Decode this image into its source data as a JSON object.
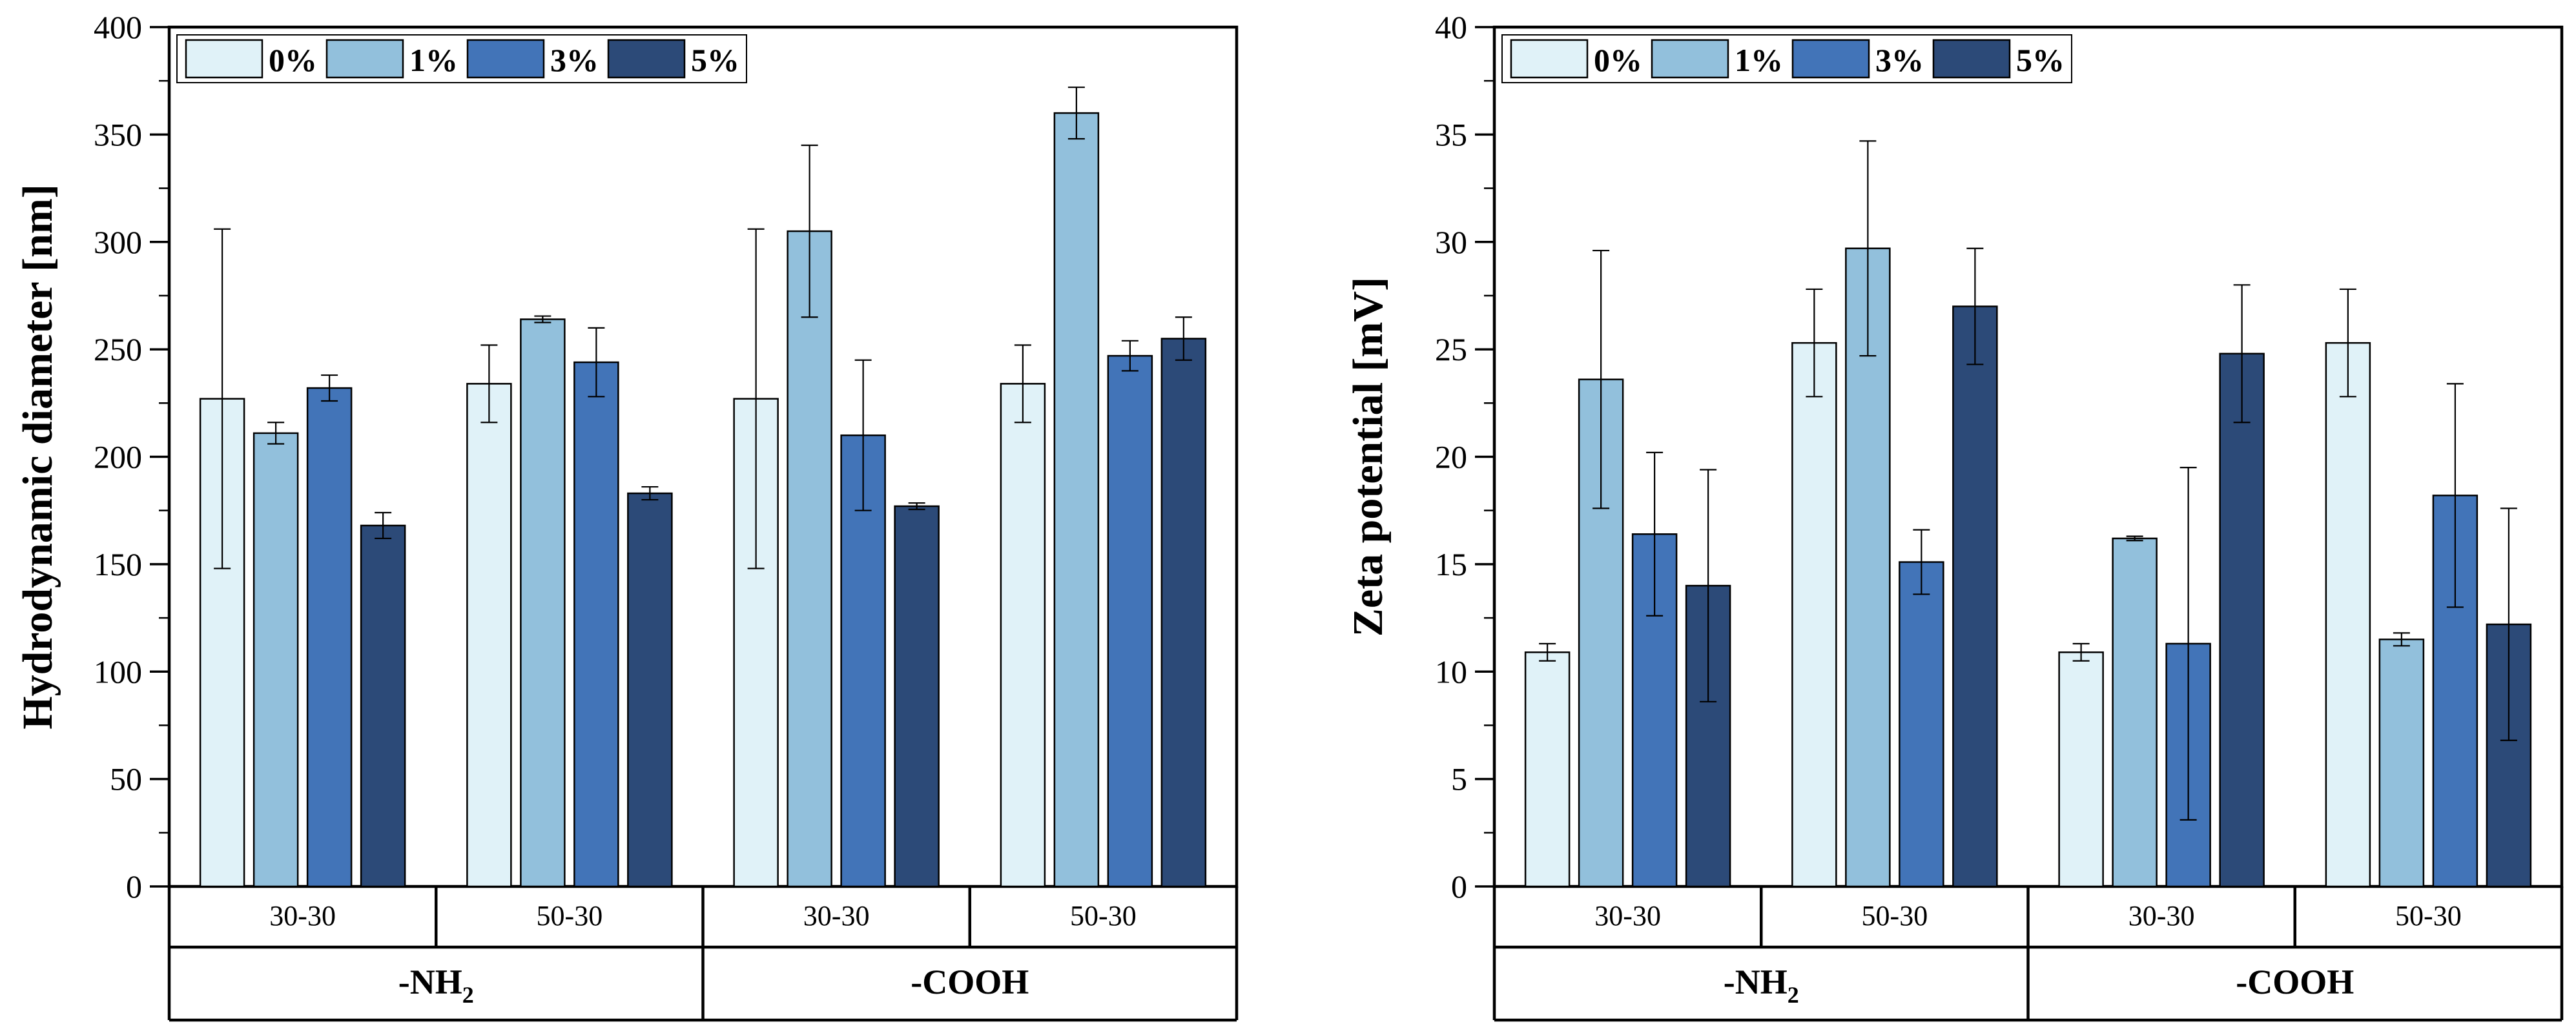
{
  "chart_data": [
    {
      "type": "bar",
      "ylabel": "Hydrodynamic diameter [nm]",
      "ylim": [
        0,
        400
      ],
      "yticks": [
        0,
        50,
        100,
        150,
        200,
        250,
        300,
        350,
        400
      ],
      "legend_position": "top-left",
      "groups": [
        {
          "label": "-NH",
          "sub": "2",
          "categories": [
            "30-30",
            "50-30"
          ]
        },
        {
          "label": "-COOH",
          "sub": "",
          "categories": [
            "30-30",
            "50-30"
          ]
        }
      ],
      "categories": [
        "30-30",
        "50-30",
        "30-30",
        "50-30"
      ],
      "series": [
        {
          "name": "0%",
          "color": "#e0f2f8",
          "values": [
            227,
            234,
            227,
            234
          ],
          "errors": [
            79,
            18,
            79,
            18
          ]
        },
        {
          "name": "1%",
          "color": "#92c0dc",
          "values": [
            211,
            264,
            305,
            360
          ],
          "errors": [
            5,
            1.5,
            40,
            12
          ]
        },
        {
          "name": "3%",
          "color": "#4274b8",
          "values": [
            232,
            244,
            210,
            247
          ],
          "errors": [
            6,
            16,
            35,
            7
          ]
        },
        {
          "name": "5%",
          "color": "#2c4a78",
          "values": [
            168,
            183,
            177,
            255
          ],
          "errors": [
            6,
            3,
            1.5,
            10
          ]
        }
      ]
    },
    {
      "type": "bar",
      "ylabel": "Zeta potential [mV]",
      "ylim": [
        0,
        40
      ],
      "yticks": [
        0,
        5,
        10,
        15,
        20,
        25,
        30,
        35,
        40
      ],
      "legend_position": "top-left",
      "groups": [
        {
          "label": "-NH",
          "sub": "2",
          "categories": [
            "30-30",
            "50-30"
          ]
        },
        {
          "label": "-COOH",
          "sub": "",
          "categories": [
            "30-30",
            "50-30"
          ]
        }
      ],
      "categories": [
        "30-30",
        "50-30",
        "30-30",
        "50-30"
      ],
      "series": [
        {
          "name": "0%",
          "color": "#e0f2f8",
          "values": [
            10.9,
            25.3,
            10.9,
            25.3
          ],
          "errors": [
            0.4,
            2.5,
            0.4,
            2.5
          ]
        },
        {
          "name": "1%",
          "color": "#92c0dc",
          "values": [
            23.6,
            29.7,
            16.2,
            11.5
          ],
          "errors": [
            6.0,
            5.0,
            0.1,
            0.3
          ]
        },
        {
          "name": "3%",
          "color": "#4274b8",
          "values": [
            16.4,
            15.1,
            11.3,
            18.2
          ],
          "errors": [
            3.8,
            1.5,
            8.2,
            5.2
          ]
        },
        {
          "name": "5%",
          "color": "#2c4a78",
          "values": [
            14.0,
            27.0,
            24.8,
            12.2
          ],
          "errors": [
            5.4,
            2.7,
            3.2,
            5.4
          ]
        }
      ]
    }
  ]
}
